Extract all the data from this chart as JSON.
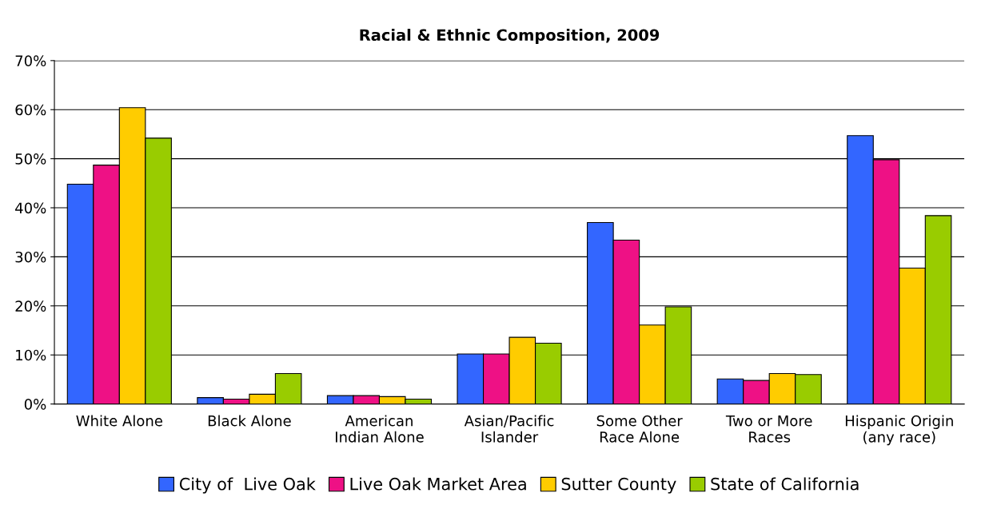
{
  "chart_data": {
    "type": "bar",
    "title": "Racial & Ethnic Composition, 2009",
    "categories": [
      "White Alone",
      "Black Alone",
      "American\nIndian Alone",
      "Asian/Pacific\nIslander",
      "Some Other\nRace Alone",
      "Two or More\nRaces",
      "Hispanic Origin\n(any race)"
    ],
    "series": [
      {
        "name": "City of  Live Oak",
        "color": "#3366ff",
        "values": [
          44.8,
          1.3,
          1.7,
          10.2,
          37.0,
          5.1,
          54.7
        ]
      },
      {
        "name": "Live Oak Market Area",
        "color": "#ee1185",
        "values": [
          48.7,
          1.0,
          1.7,
          10.2,
          33.4,
          4.8,
          49.8
        ]
      },
      {
        "name": "Sutter County",
        "color": "#ffcc00",
        "values": [
          60.4,
          2.0,
          1.5,
          13.6,
          16.1,
          6.2,
          27.7
        ]
      },
      {
        "name": "State of California",
        "color": "#99cc00",
        "values": [
          54.2,
          6.2,
          1.0,
          12.4,
          19.8,
          6.0,
          38.4
        ]
      }
    ],
    "ylim": [
      0,
      70
    ],
    "yticks": [
      {
        "value": 0,
        "label": "0%"
      },
      {
        "value": 10,
        "label": "10%"
      },
      {
        "value": 20,
        "label": "20%"
      },
      {
        "value": 30,
        "label": "30%"
      },
      {
        "value": 40,
        "label": "40%"
      },
      {
        "value": 50,
        "label": "50%"
      },
      {
        "value": 60,
        "label": "60%"
      },
      {
        "value": 70,
        "label": "70%"
      }
    ],
    "grid": "y",
    "legend": "bottom"
  }
}
